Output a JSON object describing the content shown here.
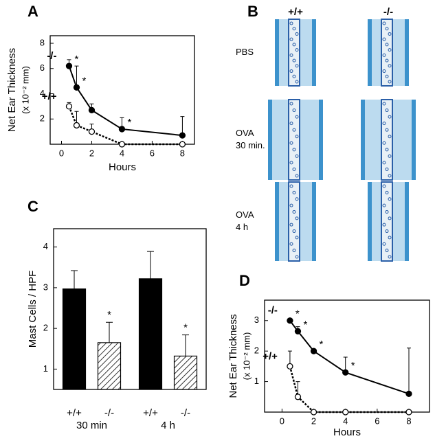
{
  "chart_data": [
    {
      "type": "line",
      "panel": "A",
      "ylabel": "Net Ear Thickness",
      "ylabel_unit": "(x 10⁻² mm)",
      "xlabel": "Hours",
      "x": [
        0.5,
        1,
        2,
        4,
        8
      ],
      "xlim": [
        -0.75,
        8.8
      ],
      "xticks": [
        0,
        2,
        4,
        6,
        8
      ],
      "ylim": [
        0,
        8.6
      ],
      "yticks": [
        2,
        4,
        6,
        8
      ],
      "grid": false,
      "series": [
        {
          "name": "-/-",
          "color": "#000000",
          "marker": "filled",
          "line_style": "solid",
          "values": [
            6.2,
            4.5,
            2.7,
            1.2,
            0.7
          ],
          "errors": [
            0.5,
            1.7,
            0.5,
            0.9,
            1.5
          ],
          "significance": [
            "*",
            "*",
            null,
            "*",
            null
          ]
        },
        {
          "name": "+/+",
          "color": "#000000",
          "marker": "open",
          "line_style": "dashed",
          "values": [
            3.0,
            1.5,
            1.0,
            0,
            0
          ],
          "errors": [
            0.3,
            1.1,
            0.6,
            null,
            null
          ],
          "significance": [
            null,
            null,
            null,
            null,
            null
          ]
        }
      ]
    },
    {
      "type": "bar",
      "panel": "C",
      "ylabel": "Mast Cells / HPF",
      "categories": [
        "30 min",
        "4 h"
      ],
      "ylim": [
        0.5,
        4.45
      ],
      "yticks": [
        1,
        2,
        3,
        4
      ],
      "grid": false,
      "series": [
        {
          "name": "+/+",
          "color": "#000000",
          "pattern": "solid",
          "values": [
            2.97,
            3.22
          ],
          "errors": [
            0.45,
            0.67
          ],
          "significance": [
            null,
            null
          ]
        },
        {
          "name": "-/-",
          "color": "#000000",
          "pattern": "hatch",
          "values": [
            1.65,
            1.32
          ],
          "errors": [
            0.5,
            0.52
          ],
          "significance": [
            "*",
            "*"
          ]
        }
      ]
    },
    {
      "type": "line",
      "panel": "D",
      "ylabel": "Net Ear Thickness",
      "ylabel_unit": "(x 10⁻² mm)",
      "xlabel": "Hours",
      "x": [
        0.5,
        1,
        2,
        4,
        8
      ],
      "xlim": [
        -1.1,
        9.3
      ],
      "xticks": [
        0,
        2,
        4,
        6,
        8
      ],
      "ylim": [
        0,
        3.67
      ],
      "yticks": [
        1,
        2,
        3
      ],
      "grid": false,
      "series": [
        {
          "name": "-/-",
          "color": "#000000",
          "marker": "filled",
          "line_style": "solid",
          "values": [
            3.0,
            2.65,
            2.0,
            1.3,
            0.6
          ],
          "errors": [
            null,
            0.15,
            null,
            0.5,
            1.5
          ],
          "significance": [
            "*",
            "*",
            "*",
            "*",
            null
          ]
        },
        {
          "name": "+/+",
          "color": "#000000",
          "marker": "open",
          "line_style": "dashed",
          "values": [
            1.5,
            0.5,
            0,
            0,
            0
          ],
          "errors": [
            0.5,
            0.5,
            null,
            null,
            null
          ],
          "significance": [
            null,
            null,
            null,
            null,
            null
          ]
        }
      ]
    }
  ],
  "panel_b": {
    "panel": "B",
    "columns": [
      "+/+",
      "-/-"
    ],
    "rows": [
      [
        "PBS"
      ],
      [
        "OVA",
        "30 min."
      ],
      [
        "OVA",
        "4 h"
      ]
    ]
  }
}
